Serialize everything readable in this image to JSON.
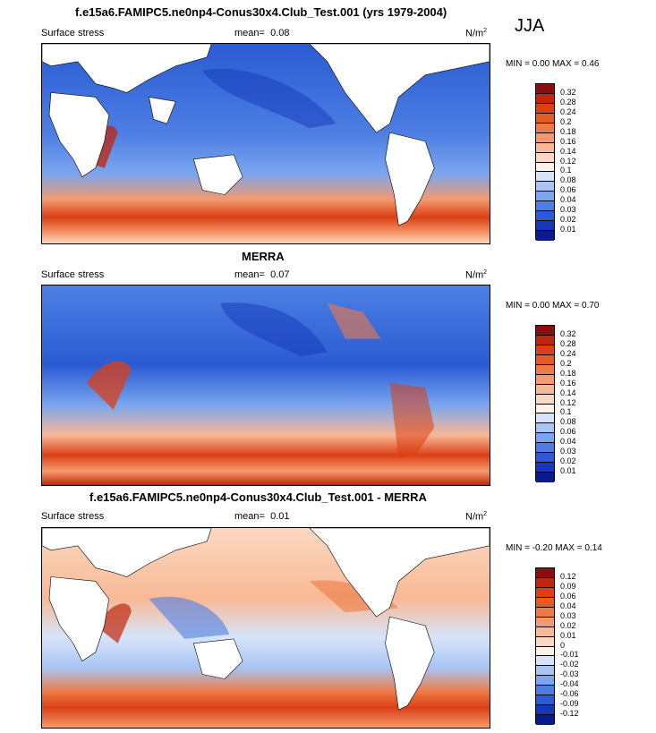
{
  "season": "JJA",
  "panels": [
    {
      "title": "f.e15a6.FAMIPC5.ne0np4-Conus30x4.Club_Test.001 (yrs 1979-2004)",
      "variable": "Surface stress",
      "mean_label": "mean=",
      "mean_value": "0.08",
      "units": "N/m",
      "units_exp": "2",
      "minmax": "MIN =   0.00 MAX =   0.46",
      "colorbar_levels": [
        "0.32",
        "0.28",
        "0.24",
        "0.2",
        "0.18",
        "0.16",
        "0.14",
        "0.12",
        "0.1",
        "0.08",
        "0.06",
        "0.04",
        "0.03",
        "0.02",
        "0.01"
      ],
      "colorbar_colors": [
        "#8b0d0d",
        "#c0260d",
        "#db3f14",
        "#e65a24",
        "#ef7a45",
        "#f49a6e",
        "#f8b996",
        "#fbd8c1",
        "#fdf1e8",
        "#d6e4fb",
        "#a8c5f5",
        "#7ba5ee",
        "#4d7fe3",
        "#2a5bd4",
        "#1637b8",
        "#0b1b8c"
      ]
    },
    {
      "title": "MERRA",
      "variable": "Surface stress",
      "mean_label": "mean=",
      "mean_value": "0.07",
      "units": "N/m",
      "units_exp": "2",
      "minmax": "MIN =   0.00 MAX =   0.70",
      "colorbar_levels": [
        "0.32",
        "0.28",
        "0.24",
        "0.2",
        "0.18",
        "0.16",
        "0.14",
        "0.12",
        "0.1",
        "0.08",
        "0.06",
        "0.04",
        "0.03",
        "0.02",
        "0.01"
      ],
      "colorbar_colors": [
        "#8b0d0d",
        "#c0260d",
        "#db3f14",
        "#e65a24",
        "#ef7a45",
        "#f49a6e",
        "#f8b996",
        "#fbd8c1",
        "#fdf1e8",
        "#d6e4fb",
        "#a8c5f5",
        "#7ba5ee",
        "#4d7fe3",
        "#2a5bd4",
        "#1637b8",
        "#0b1b8c"
      ]
    },
    {
      "title": "f.e15a6.FAMIPC5.ne0np4-Conus30x4.Club_Test.001 - MERRA",
      "variable": "Surface stress",
      "mean_label": "mean=",
      "mean_value": "0.01",
      "units": "N/m",
      "units_exp": "2",
      "minmax": "MIN =  -0.20 MAX =   0.14",
      "colorbar_levels": [
        "0.12",
        "0.09",
        "0.06",
        "0.04",
        "0.03",
        "0.02",
        "0.01",
        "0",
        "-0.01",
        "-0.02",
        "-0.03",
        "-0.04",
        "-0.06",
        "-0.09",
        "-0.12"
      ],
      "colorbar_colors": [
        "#8b0d0d",
        "#c0260d",
        "#db3f14",
        "#e65a24",
        "#ef7a45",
        "#f49a6e",
        "#f8b996",
        "#fbd8c1",
        "#fdf1e8",
        "#d6e4fb",
        "#a8c5f5",
        "#7ba5ee",
        "#4d7fe3",
        "#2a5bd4",
        "#1637b8",
        "#0b1b8c"
      ]
    }
  ]
}
